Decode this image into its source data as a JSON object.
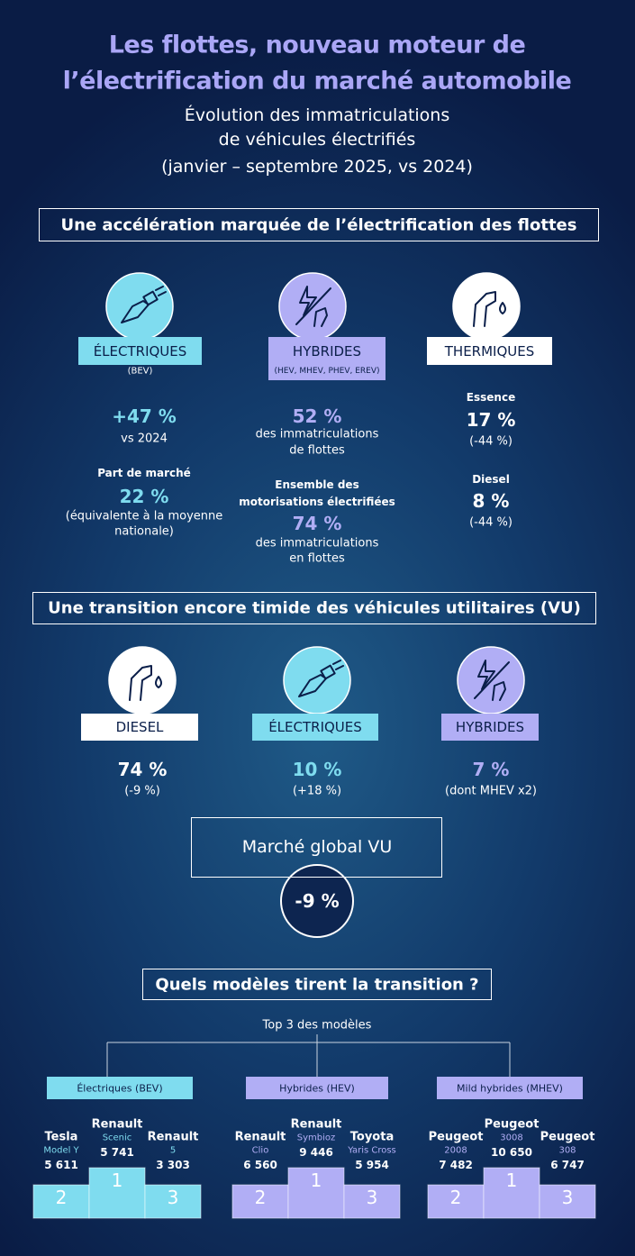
{
  "header": {
    "title_lines": [
      "Les flottes, nouveau moteur de",
      "l’électrification du marché automobile"
    ],
    "subtitle_lines": [
      "Évolution des immatriculations",
      "de véhicules électrifiés",
      "(janvier – septembre 2025, vs 2024)"
    ]
  },
  "section1": {
    "heading": "Une accélération marquée de l’électrification des flottes",
    "columns": [
      {
        "label": "ÉLECTRIQUES",
        "sublabel": "(BEV)",
        "lines": [
          "+47 %",
          "vs 2024",
          "Part de marché",
          "22 %",
          "(équivalente à la moyenne",
          "nationale)"
        ]
      },
      {
        "label": "HYBRIDES",
        "sublabel": "(HEV, MHEV, PHEV, EREV)",
        "lines": [
          "52 %",
          "des immatriculations",
          "de flottes",
          "Ensemble des",
          "motorisations électrifiées",
          "74 %",
          "des immatriculations",
          "en flottes"
        ]
      },
      {
        "label": "THERMIQUES",
        "lines": [
          "Essence",
          "17 %",
          "(-44 %)",
          "Diesel",
          "8 %",
          "(-44 %)"
        ]
      }
    ]
  },
  "section2": {
    "heading": "Une transition encore timide des véhicules utilitaires (VU)",
    "columns": [
      {
        "label": "DIESEL",
        "value": "74 %",
        "note": "(-9 %)"
      },
      {
        "label": "ÉLECTRIQUES",
        "value": "10 %",
        "note": "(+18 %)"
      },
      {
        "label": "HYBRIDES",
        "value": "7 %",
        "note": "(dont MHEV x2)"
      }
    ],
    "global_label": "Marché global VU",
    "global_value": "-9 %"
  },
  "section3": {
    "heading": "Quels modèles tirent la transition ?",
    "subheading": "Top 3 des modèles",
    "groups": [
      {
        "label": "Électriques (BEV)",
        "podium": [
          {
            "rank": "2",
            "brand": "Tesla",
            "model": "Model Y",
            "value": "5 611"
          },
          {
            "rank": "1",
            "brand": "Renault",
            "model": "Scenic",
            "value": "5 741"
          },
          {
            "rank": "3",
            "brand": "Renault",
            "model": "5",
            "value": "3 303"
          }
        ]
      },
      {
        "label": "Hybrides (HEV)",
        "podium": [
          {
            "rank": "2",
            "brand": "Renault",
            "model": "Clio",
            "value": "6 560"
          },
          {
            "rank": "1",
            "brand": "Renault",
            "model": "Symbioz",
            "value": "9 446"
          },
          {
            "rank": "3",
            "brand": "Toyota",
            "model": "Yaris Cross",
            "value": "5 954"
          }
        ]
      },
      {
        "label": "Mild hybrides (MHEV)",
        "podium": [
          {
            "rank": "2",
            "brand": "Peugeot",
            "model": "2008",
            "value": "7 482"
          },
          {
            "rank": "1",
            "brand": "Peugeot",
            "model": "3008",
            "value": "10 650"
          },
          {
            "rank": "3",
            "brand": "Peugeot",
            "model": "308",
            "value": "6 747"
          }
        ]
      }
    ]
  }
}
